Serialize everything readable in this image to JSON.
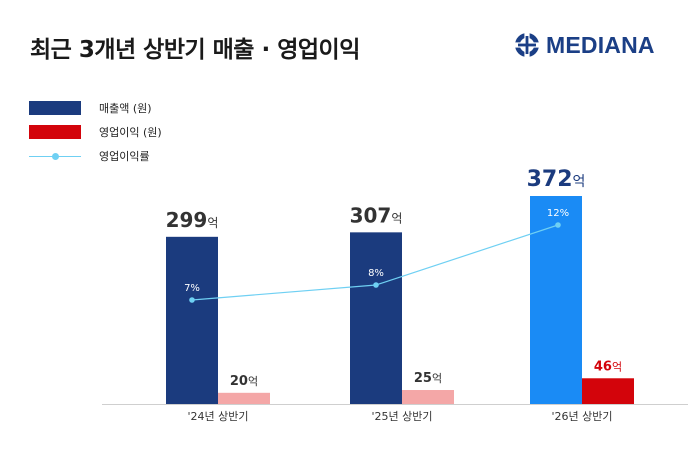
{
  "header": {
    "title": "최근 3개년 상반기 매출 · 영업이익",
    "logo_text": "MEDIANA"
  },
  "legend": {
    "items": [
      {
        "label": "매출액 (원)",
        "color": "#1b3b7e",
        "kind": "bar"
      },
      {
        "label": "영업이익 (원)",
        "color": "#d3040b",
        "kind": "bar"
      },
      {
        "label": "영업이익률",
        "color": "#6fd0f3",
        "kind": "line"
      }
    ]
  },
  "chart_data": {
    "type": "bar",
    "categories": [
      "'24년 상반기",
      "'25년 상반기",
      "'26년 상반기"
    ],
    "series": [
      {
        "name": "매출액 (원)",
        "values": [
          299,
          307,
          372
        ],
        "labels": [
          "299",
          "307",
          "372"
        ],
        "unit": "억",
        "colors": [
          "#1b3b7e",
          "#1b3b7e",
          "#1a8bf5"
        ]
      },
      {
        "name": "영업이익 (원)",
        "values": [
          20,
          25,
          46
        ],
        "labels": [
          "20",
          "25",
          "46"
        ],
        "unit": "억",
        "colors": [
          "#f4a7a7",
          "#f4a7a7",
          "#d3040b"
        ]
      },
      {
        "name": "영업이익률",
        "type": "line",
        "values": [
          7,
          8,
          12
        ],
        "labels": [
          "7%",
          "8%",
          "12%"
        ],
        "color": "#6fd0f3"
      }
    ],
    "ylim": [
      0,
      372
    ],
    "grid": false,
    "legend_position": "top-left"
  }
}
